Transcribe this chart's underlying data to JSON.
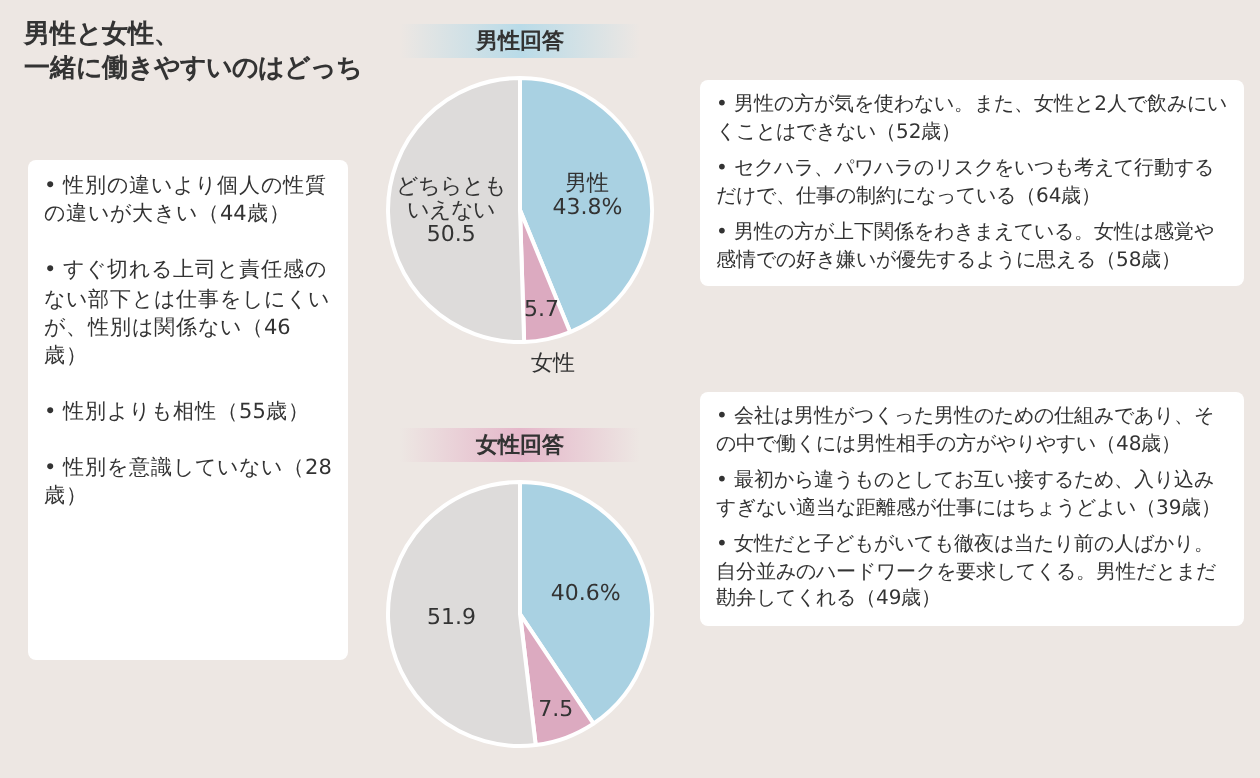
{
  "chart_data": [
    {
      "type": "other",
      "title": "男性と女性、一緒に働きやすいのはどっち",
      "annotations": [
        "• 性別の違いより個人の性質の違いが大きい（44歳）",
        "• すぐ切れる上司と責任感のない部下とは仕事をしにくいが、性別は関係ない（46歳）",
        "• 性別よりも相性（55歳）",
        "• 性別を意識していない（28歳）"
      ]
    },
    {
      "type": "pie",
      "title": "男性回答",
      "categories": [
        "男性",
        "女性",
        "どちらともいえない"
      ],
      "values": [
        43.8,
        5.7,
        50.5
      ],
      "value_labels": [
        "43.8%",
        "5.7",
        "50.5"
      ],
      "colors": [
        "#a9d1e2",
        "#dcaac0",
        "#dddbda"
      ],
      "annotations": [
        "• 男性の方が気を使わない。また、女性と2人で飲みにいくことはできない（52歳）",
        "• セクハラ、パワハラのリスクをいつも考えて行動するだけで、仕事の制約になっている（64歳）",
        "• 男性の方が上下関係をわきまえている。女性は感覚や感情での好き嫌いが優先するように思える（58歳）"
      ]
    },
    {
      "type": "pie",
      "title": "女性回答",
      "categories": [
        null,
        null,
        null
      ],
      "values": [
        40.6,
        7.5,
        51.9
      ],
      "value_labels": [
        "40.6%",
        "7.5",
        "51.9"
      ],
      "colors": [
        "#a9d1e2",
        "#dcaac0",
        "#dddbda"
      ],
      "annotations": [
        "• 会社は男性がつくった男性のための仕組みであり、その中で働くには男性相手の方がやりやすい（48歳）",
        "• 最初から違うものとしてお互い接するため、入り込みすぎない適当な距離感が仕事にはちょうどよい（39歳）",
        "• 女性だと子どもがいても徹夜は当たり前の人ばかり。自分並みのハードワークを要求してくる。男性だとまだ勘弁してくれる（49歳）"
      ]
    }
  ]
}
